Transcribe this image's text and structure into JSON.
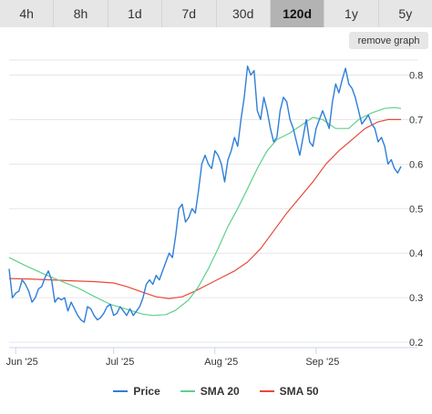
{
  "ranges": {
    "buttons": [
      "4h",
      "8h",
      "1d",
      "7d",
      "30d",
      "120d",
      "1y",
      "5y"
    ],
    "active": "120d"
  },
  "remove_graph_label": "remove graph",
  "colors": {
    "price": "#2f7ed8",
    "sma20": "#5fd08a",
    "sma50": "#e8483b",
    "grid": "#e6e6e6",
    "active_range": "#b3b3b3"
  },
  "legend": [
    {
      "label": "Price",
      "series": "price"
    },
    {
      "label": "SMA 20",
      "series": "sma20"
    },
    {
      "label": "SMA 50",
      "series": "sma50"
    }
  ],
  "chart_data": {
    "type": "line",
    "title": "",
    "xlabel": "",
    "ylabel": "",
    "x_tick_labels": [
      {
        "label": "Jun '25",
        "date": "2025-06-01"
      },
      {
        "label": "Jul '25",
        "date": "2025-07-01"
      },
      {
        "label": "Aug '25",
        "date": "2025-08-01"
      },
      {
        "label": "Sep '25",
        "date": "2025-09-01"
      }
    ],
    "y_ticks": [
      0.2,
      0.3,
      0.4,
      0.5,
      0.6,
      0.7,
      0.8
    ],
    "ylim": [
      0.19,
      0.85
    ],
    "xlim": [
      "2025-05-30",
      "2025-09-27"
    ],
    "grid": "horizontal",
    "legend_position": "bottom-center",
    "series": [
      {
        "name": "Price",
        "key": "price",
        "points": [
          [
            "2025-05-30",
            0.365
          ],
          [
            "2025-05-31",
            0.3
          ],
          [
            "2025-06-01",
            0.31
          ],
          [
            "2025-06-02",
            0.315
          ],
          [
            "2025-06-03",
            0.34
          ],
          [
            "2025-06-04",
            0.33
          ],
          [
            "2025-06-05",
            0.315
          ],
          [
            "2025-06-06",
            0.29
          ],
          [
            "2025-06-07",
            0.3
          ],
          [
            "2025-06-08",
            0.32
          ],
          [
            "2025-06-09",
            0.325
          ],
          [
            "2025-06-10",
            0.345
          ],
          [
            "2025-06-11",
            0.36
          ],
          [
            "2025-06-12",
            0.34
          ],
          [
            "2025-06-13",
            0.29
          ],
          [
            "2025-06-14",
            0.3
          ],
          [
            "2025-06-15",
            0.295
          ],
          [
            "2025-06-16",
            0.3
          ],
          [
            "2025-06-17",
            0.27
          ],
          [
            "2025-06-18",
            0.29
          ],
          [
            "2025-06-19",
            0.275
          ],
          [
            "2025-06-20",
            0.26
          ],
          [
            "2025-06-21",
            0.25
          ],
          [
            "2025-06-22",
            0.245
          ],
          [
            "2025-06-23",
            0.28
          ],
          [
            "2025-06-24",
            0.275
          ],
          [
            "2025-06-25",
            0.26
          ],
          [
            "2025-06-26",
            0.25
          ],
          [
            "2025-06-27",
            0.255
          ],
          [
            "2025-06-28",
            0.265
          ],
          [
            "2025-06-29",
            0.28
          ],
          [
            "2025-06-30",
            0.285
          ],
          [
            "2025-07-01",
            0.26
          ],
          [
            "2025-07-02",
            0.265
          ],
          [
            "2025-07-03",
            0.28
          ],
          [
            "2025-07-04",
            0.27
          ],
          [
            "2025-07-05",
            0.26
          ],
          [
            "2025-07-06",
            0.275
          ],
          [
            "2025-07-07",
            0.26
          ],
          [
            "2025-07-08",
            0.27
          ],
          [
            "2025-07-09",
            0.28
          ],
          [
            "2025-07-10",
            0.3
          ],
          [
            "2025-07-11",
            0.33
          ],
          [
            "2025-07-12",
            0.34
          ],
          [
            "2025-07-13",
            0.33
          ],
          [
            "2025-07-14",
            0.35
          ],
          [
            "2025-07-15",
            0.34
          ],
          [
            "2025-07-16",
            0.36
          ],
          [
            "2025-07-17",
            0.38
          ],
          [
            "2025-07-18",
            0.4
          ],
          [
            "2025-07-19",
            0.39
          ],
          [
            "2025-07-20",
            0.44
          ],
          [
            "2025-07-21",
            0.5
          ],
          [
            "2025-07-22",
            0.51
          ],
          [
            "2025-07-23",
            0.47
          ],
          [
            "2025-07-24",
            0.48
          ],
          [
            "2025-07-25",
            0.5
          ],
          [
            "2025-07-26",
            0.49
          ],
          [
            "2025-07-27",
            0.54
          ],
          [
            "2025-07-28",
            0.6
          ],
          [
            "2025-07-29",
            0.62
          ],
          [
            "2025-07-30",
            0.6
          ],
          [
            "2025-07-31",
            0.59
          ],
          [
            "2025-08-01",
            0.63
          ],
          [
            "2025-08-02",
            0.62
          ],
          [
            "2025-08-03",
            0.6
          ],
          [
            "2025-08-04",
            0.56
          ],
          [
            "2025-08-05",
            0.61
          ],
          [
            "2025-08-06",
            0.63
          ],
          [
            "2025-08-07",
            0.66
          ],
          [
            "2025-08-08",
            0.64
          ],
          [
            "2025-08-09",
            0.7
          ],
          [
            "2025-08-10",
            0.75
          ],
          [
            "2025-08-11",
            0.82
          ],
          [
            "2025-08-12",
            0.8
          ],
          [
            "2025-08-13",
            0.81
          ],
          [
            "2025-08-14",
            0.72
          ],
          [
            "2025-08-15",
            0.7
          ],
          [
            "2025-08-16",
            0.75
          ],
          [
            "2025-08-17",
            0.72
          ],
          [
            "2025-08-18",
            0.68
          ],
          [
            "2025-08-19",
            0.65
          ],
          [
            "2025-08-20",
            0.66
          ],
          [
            "2025-08-21",
            0.72
          ],
          [
            "2025-08-22",
            0.75
          ],
          [
            "2025-08-23",
            0.74
          ],
          [
            "2025-08-24",
            0.7
          ],
          [
            "2025-08-25",
            0.68
          ],
          [
            "2025-08-26",
            0.65
          ],
          [
            "2025-08-27",
            0.62
          ],
          [
            "2025-08-28",
            0.66
          ],
          [
            "2025-08-29",
            0.7
          ],
          [
            "2025-08-30",
            0.65
          ],
          [
            "2025-08-31",
            0.64
          ],
          [
            "2025-09-01",
            0.68
          ],
          [
            "2025-09-02",
            0.7
          ],
          [
            "2025-09-03",
            0.72
          ],
          [
            "2025-09-04",
            0.7
          ],
          [
            "2025-09-05",
            0.68
          ],
          [
            "2025-09-06",
            0.74
          ],
          [
            "2025-09-07",
            0.78
          ],
          [
            "2025-09-08",
            0.76
          ],
          [
            "2025-09-09",
            0.79
          ],
          [
            "2025-09-10",
            0.815
          ],
          [
            "2025-09-11",
            0.78
          ],
          [
            "2025-09-12",
            0.77
          ],
          [
            "2025-09-13",
            0.75
          ],
          [
            "2025-09-14",
            0.72
          ],
          [
            "2025-09-15",
            0.69
          ],
          [
            "2025-09-16",
            0.7
          ],
          [
            "2025-09-17",
            0.71
          ],
          [
            "2025-09-18",
            0.69
          ],
          [
            "2025-09-19",
            0.68
          ],
          [
            "2025-09-20",
            0.65
          ],
          [
            "2025-09-21",
            0.66
          ],
          [
            "2025-09-22",
            0.64
          ],
          [
            "2025-09-23",
            0.6
          ],
          [
            "2025-09-24",
            0.61
          ],
          [
            "2025-09-25",
            0.59
          ],
          [
            "2025-09-26",
            0.58
          ],
          [
            "2025-09-27",
            0.595
          ]
        ]
      },
      {
        "name": "SMA 20",
        "key": "sma20",
        "points": [
          [
            "2025-05-30",
            0.39
          ],
          [
            "2025-06-04",
            0.372
          ],
          [
            "2025-06-10",
            0.352
          ],
          [
            "2025-06-15",
            0.337
          ],
          [
            "2025-06-20",
            0.322
          ],
          [
            "2025-06-25",
            0.303
          ],
          [
            "2025-06-30",
            0.285
          ],
          [
            "2025-07-05",
            0.274
          ],
          [
            "2025-07-10",
            0.263
          ],
          [
            "2025-07-13",
            0.26
          ],
          [
            "2025-07-17",
            0.262
          ],
          [
            "2025-07-20",
            0.272
          ],
          [
            "2025-07-24",
            0.295
          ],
          [
            "2025-07-27",
            0.325
          ],
          [
            "2025-07-30",
            0.365
          ],
          [
            "2025-08-02",
            0.41
          ],
          [
            "2025-08-05",
            0.46
          ],
          [
            "2025-08-08",
            0.5
          ],
          [
            "2025-08-11",
            0.545
          ],
          [
            "2025-08-14",
            0.59
          ],
          [
            "2025-08-17",
            0.63
          ],
          [
            "2025-08-20",
            0.655
          ],
          [
            "2025-08-24",
            0.67
          ],
          [
            "2025-08-28",
            0.69
          ],
          [
            "2025-08-31",
            0.705
          ],
          [
            "2025-09-03",
            0.7
          ],
          [
            "2025-09-07",
            0.68
          ],
          [
            "2025-09-11",
            0.68
          ],
          [
            "2025-09-14",
            0.7
          ],
          [
            "2025-09-18",
            0.715
          ],
          [
            "2025-09-22",
            0.725
          ],
          [
            "2025-09-25",
            0.727
          ],
          [
            "2025-09-27",
            0.725
          ]
        ]
      },
      {
        "name": "SMA 50",
        "key": "sma50",
        "points": [
          [
            "2025-05-30",
            0.343
          ],
          [
            "2025-06-05",
            0.342
          ],
          [
            "2025-06-12",
            0.34
          ],
          [
            "2025-06-18",
            0.338
          ],
          [
            "2025-06-25",
            0.336
          ],
          [
            "2025-07-01",
            0.333
          ],
          [
            "2025-07-05",
            0.325
          ],
          [
            "2025-07-10",
            0.312
          ],
          [
            "2025-07-14",
            0.302
          ],
          [
            "2025-07-18",
            0.298
          ],
          [
            "2025-07-22",
            0.302
          ],
          [
            "2025-07-26",
            0.315
          ],
          [
            "2025-07-30",
            0.33
          ],
          [
            "2025-08-03",
            0.345
          ],
          [
            "2025-08-07",
            0.36
          ],
          [
            "2025-08-11",
            0.38
          ],
          [
            "2025-08-15",
            0.41
          ],
          [
            "2025-08-19",
            0.45
          ],
          [
            "2025-08-23",
            0.49
          ],
          [
            "2025-08-27",
            0.525
          ],
          [
            "2025-08-31",
            0.56
          ],
          [
            "2025-09-04",
            0.6
          ],
          [
            "2025-09-08",
            0.63
          ],
          [
            "2025-09-12",
            0.655
          ],
          [
            "2025-09-16",
            0.68
          ],
          [
            "2025-09-20",
            0.695
          ],
          [
            "2025-09-23",
            0.7
          ],
          [
            "2025-09-27",
            0.7
          ]
        ]
      }
    ]
  }
}
